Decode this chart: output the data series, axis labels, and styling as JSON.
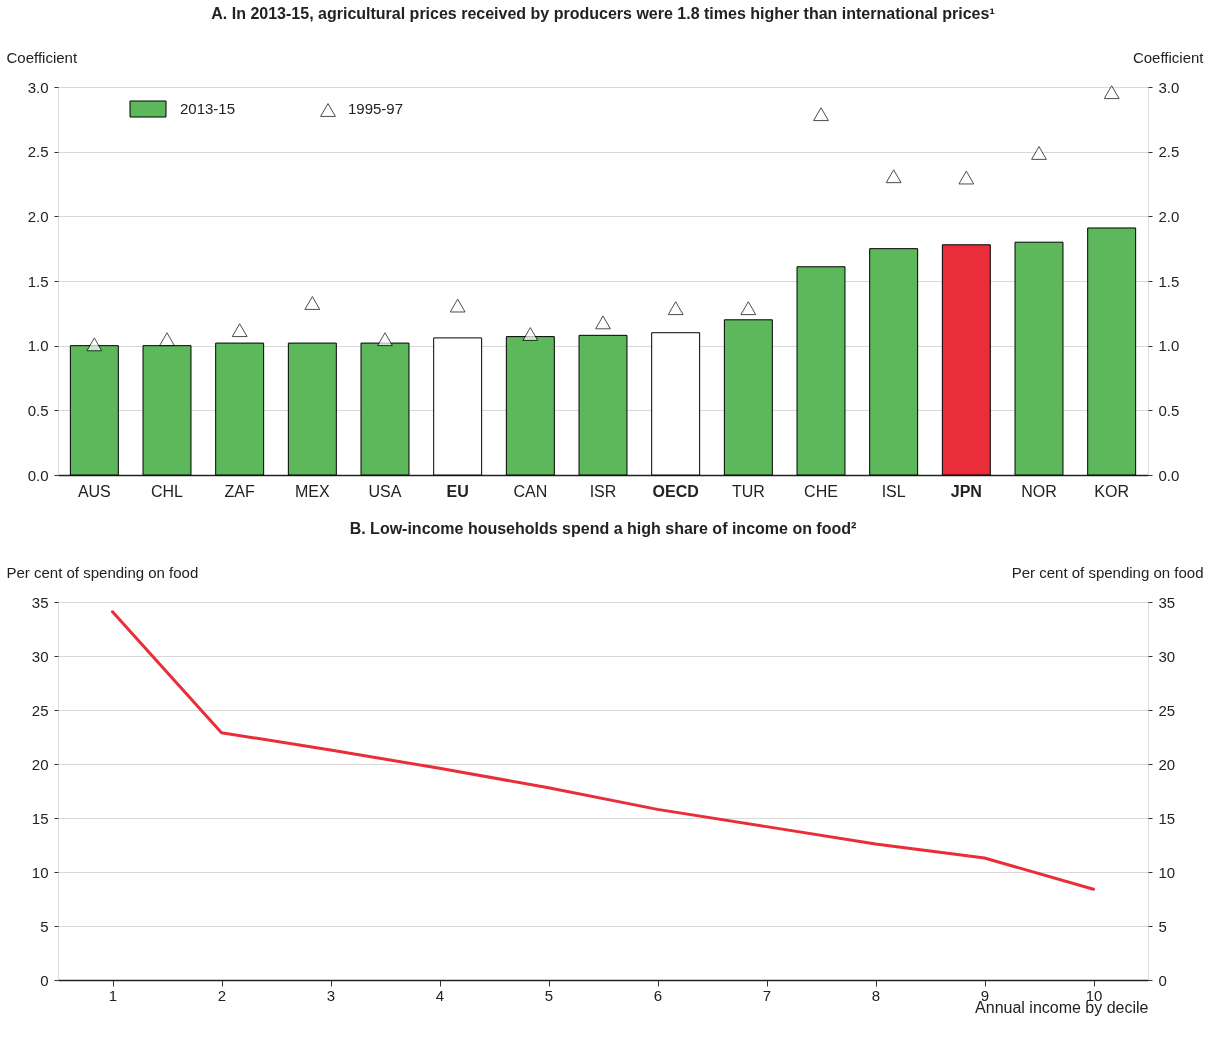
{
  "chart_data": [
    {
      "type": "bar",
      "title": "A. In 2013-15, agricultural prices received by producers were 1.8 times higher than international prices¹",
      "categories": [
        "AUS",
        "CHL",
        "ZAF",
        "MEX",
        "USA",
        "EU",
        "CAN",
        "ISR",
        "OECD",
        "TUR",
        "CHE",
        "ISL",
        "JPN",
        "NOR",
        "KOR"
      ],
      "ylabel": "Coefficient",
      "y2label": "Coefficient",
      "ylim": [
        0,
        3
      ],
      "yticks": [
        {
          "value": 0,
          "label": "0.0"
        },
        0.5,
        {
          "value": 1,
          "label": "1.0"
        },
        1.5,
        {
          "value": 2,
          "label": "2.0"
        },
        2.5,
        {
          "value": 3,
          "label": "3.0"
        }
      ],
      "y2lim": [
        0,
        3
      ],
      "y2ticks": [
        {
          "value": 0,
          "label": "0.0"
        },
        0.5,
        {
          "value": 1,
          "label": "1.0"
        },
        1.5,
        {
          "value": 2,
          "label": "2.0"
        },
        2.5,
        {
          "value": 3,
          "label": "3.0"
        }
      ],
      "grid": "y",
      "legend": "top left",
      "series": [
        {
          "name": "2013-15",
          "type": "bar",
          "color": "#5cb85a",
          "colors": [
            "#5cb85a",
            "#5cb85a",
            "#5cb85a",
            "#5cb85a",
            "#5cb85a",
            "#ffffff",
            "#5cb85a",
            "#5cb85a",
            "#ffffff",
            "#5cb85a",
            "#5cb85a",
            "#5cb85a",
            "#e92d39",
            "#5cb85a",
            "#5cb85a"
          ],
          "values": [
            1.0,
            1.0,
            1.02,
            1.02,
            1.02,
            1.06,
            1.07,
            1.08,
            1.1,
            1.2,
            1.61,
            1.75,
            1.78,
            1.8,
            1.91
          ]
        },
        {
          "name": "1995-97",
          "type": "scatter",
          "marker": "triangle",
          "color": "#000000",
          "values": [
            1.01,
            1.05,
            1.12,
            1.33,
            1.05,
            1.31,
            1.09,
            1.18,
            1.29,
            1.29,
            2.79,
            2.31,
            2.3,
            2.49,
            2.96
          ]
        }
      ]
    },
    {
      "type": "line",
      "title": "B. Low-income households spend a high share of income on food²",
      "xlabel": "Annual income by decile",
      "ylabel": "Per cent of spending on food",
      "y2label": "Per cent of spending on food",
      "x": [
        1,
        2,
        3,
        4,
        5,
        6,
        7,
        8,
        9,
        10
      ],
      "xlim": [
        0.5,
        10.5
      ],
      "xticks": [
        1,
        2,
        3,
        4,
        5,
        6,
        7,
        8,
        9,
        10
      ],
      "ylim": [
        0,
        35
      ],
      "yticks": [
        0,
        5,
        10,
        15,
        20,
        25,
        30,
        35
      ],
      "y2lim": [
        0,
        35
      ],
      "y2ticks": [
        0,
        5,
        10,
        15,
        20,
        25,
        30,
        35
      ],
      "grid": "y",
      "marker": "none",
      "line_style": "solid",
      "series": [
        {
          "color": "#e92d39",
          "values": [
            34.1,
            22.9,
            21.3,
            19.6,
            17.8,
            15.8,
            14.2,
            12.6,
            11.3,
            8.4
          ]
        }
      ]
    }
  ]
}
